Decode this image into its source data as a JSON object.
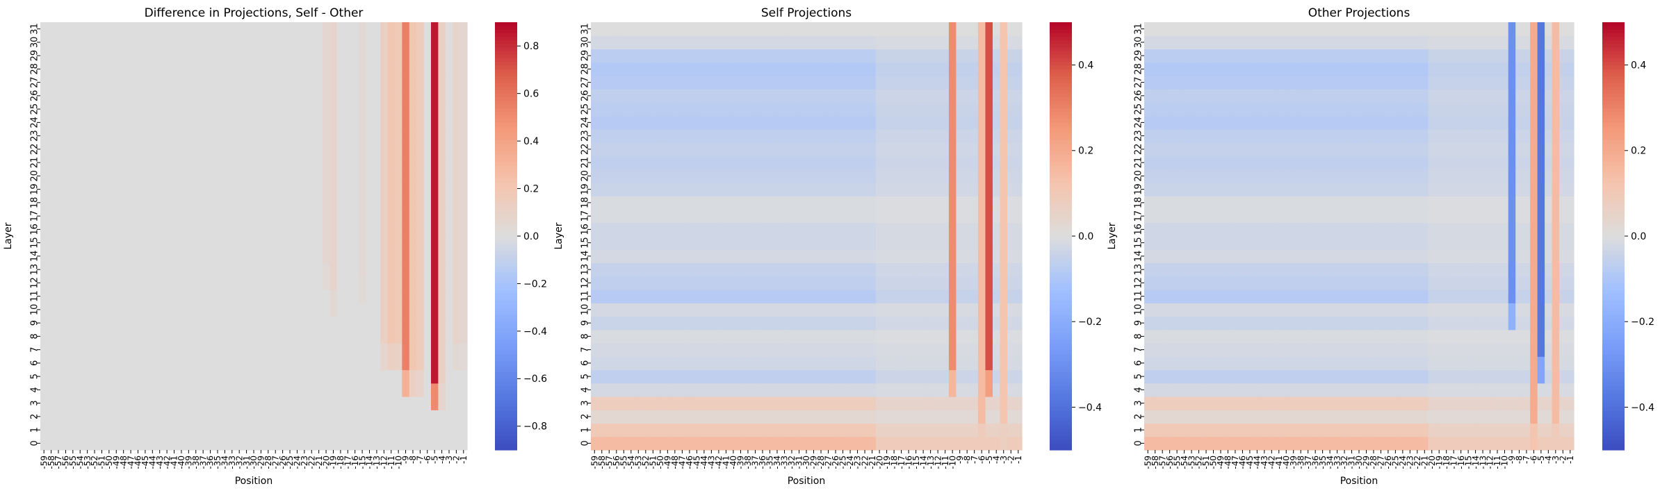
{
  "chart_data": [
    {
      "type": "heatmap",
      "title": "Difference in Projections, Self - Other",
      "xlabel": "Position",
      "ylabel": "Layer",
      "x_ticks": [
        "-59",
        "-57",
        "-55",
        "-53",
        "-51",
        "-49",
        "-47",
        "-45",
        "-43",
        "-41",
        "-39",
        "-37",
        "-35",
        "-33",
        "-31",
        "-29",
        "-27",
        "-25",
        "-23",
        "-21",
        "-19",
        "-17",
        "-15",
        "-13",
        "-11",
        "-9",
        "-7",
        "-5",
        "-3",
        "-1"
      ],
      "x_ticks_secondary": [
        "-58",
        "-56",
        "-54",
        "-52",
        "-50",
        "-48",
        "-46",
        "-44",
        "-42",
        "-40",
        "-38",
        "-36",
        "-34",
        "-32",
        "-30",
        "-28",
        "-26",
        "-24",
        "-22",
        "-20",
        "-18",
        "-16",
        "-14",
        "-12",
        "-10",
        "-8",
        "-6",
        "-4",
        "-2"
      ],
      "y_ticks": [
        "0",
        "1",
        "2",
        "3",
        "4",
        "5",
        "6",
        "7",
        "8",
        "9",
        "10",
        "11",
        "12",
        "13",
        "14",
        "15",
        "16",
        "17",
        "18",
        "19",
        "20",
        "21",
        "22",
        "23",
        "24",
        "25",
        "26",
        "27",
        "28",
        "29",
        "30",
        "31"
      ],
      "colormap": "coolwarm",
      "vmin": -0.9,
      "vmax": 0.9,
      "colorbar_ticks": [
        "-0.8",
        "-0.6",
        "-0.4",
        "-0.2",
        "0.0",
        "0.2",
        "0.4",
        "0.6",
        "0.8"
      ],
      "colorbar_values": [
        -0.8,
        -0.6,
        -0.4,
        -0.2,
        0.0,
        0.2,
        0.4,
        0.6,
        0.8
      ],
      "columns": [
        {
          "position": -20,
          "from_layer": 12,
          "values": 0.06
        },
        {
          "position": -19,
          "from_layer": 10,
          "values": 0.08
        },
        {
          "position": -15,
          "from_layer": 11,
          "values": 0.05
        },
        {
          "position": -12,
          "from_layer": 6,
          "values": 0.12
        },
        {
          "position": -11,
          "from_layer": 6,
          "values": 0.2
        },
        {
          "position": -10,
          "from_layer": 6,
          "values": 0.18
        },
        {
          "position": -9,
          "from_layer": 4,
          "values": 0.55
        },
        {
          "position": -8,
          "from_layer": 4,
          "values": 0.2
        },
        {
          "position": -7,
          "from_layer": 4,
          "values": 0.15
        },
        {
          "position": -5,
          "from_layer": 3,
          "values": 0.85
        },
        {
          "position": -4,
          "from_layer": 3,
          "values": 0.12
        },
        {
          "position": -2,
          "from_layer": 6,
          "values": 0.08
        },
        {
          "position": -1,
          "from_layer": 6,
          "values": 0.06
        }
      ]
    },
    {
      "type": "heatmap",
      "title": "Self Projections",
      "xlabel": "Position",
      "ylabel": "Layer",
      "x_ticks": [
        "-59",
        "-57",
        "-55",
        "-53",
        "-51",
        "-49",
        "-47",
        "-45",
        "-43",
        "-41",
        "-39",
        "-37",
        "-35",
        "-33",
        "-31",
        "-29",
        "-27",
        "-25",
        "-23",
        "-21",
        "-19",
        "-17",
        "-15",
        "-13",
        "-11",
        "-9",
        "-7",
        "-5",
        "-3",
        "-1"
      ],
      "x_ticks_secondary": [
        "-58",
        "-56",
        "-54",
        "-52",
        "-50",
        "-48",
        "-46",
        "-44",
        "-42",
        "-40",
        "-38",
        "-36",
        "-34",
        "-32",
        "-30",
        "-28",
        "-26",
        "-24",
        "-22",
        "-20",
        "-18",
        "-16",
        "-14",
        "-12",
        "-10",
        "-8",
        "-6",
        "-4",
        "-2"
      ],
      "y_ticks": [
        "0",
        "1",
        "2",
        "3",
        "4",
        "5",
        "6",
        "7",
        "8",
        "9",
        "10",
        "11",
        "12",
        "13",
        "14",
        "15",
        "16",
        "17",
        "18",
        "19",
        "20",
        "21",
        "22",
        "23",
        "24",
        "25",
        "26",
        "27",
        "28",
        "29",
        "30",
        "31"
      ],
      "colormap": "coolwarm",
      "vmin": -0.5,
      "vmax": 0.5,
      "colorbar_ticks": [
        "-0.4",
        "-0.2",
        "0.0",
        "0.2",
        "0.4"
      ],
      "colorbar_values": [
        -0.4,
        -0.2,
        0.0,
        0.2,
        0.4
      ],
      "layer_baseline": [
        0.15,
        0.1,
        0.03,
        0.08,
        -0.02,
        -0.06,
        -0.03,
        -0.02,
        -0.01,
        -0.04,
        -0.02,
        -0.08,
        -0.06,
        -0.05,
        -0.02,
        -0.03,
        -0.03,
        -0.01,
        -0.01,
        -0.04,
        -0.05,
        -0.06,
        -0.05,
        -0.06,
        -0.08,
        -0.07,
        -0.06,
        -0.08,
        -0.09,
        -0.07,
        -0.02,
        0.0
      ],
      "columns": [
        {
          "position": -10,
          "from_layer": 4,
          "values": 0.28
        },
        {
          "position": -5,
          "from_layer": 4,
          "values": 0.4
        },
        {
          "position": -6,
          "from_layer": 0,
          "values": 0.15
        },
        {
          "position": -3,
          "from_layer": 0,
          "values": 0.12
        }
      ]
    },
    {
      "type": "heatmap",
      "title": "Other Projections",
      "xlabel": "Position",
      "ylabel": "Layer",
      "x_ticks": [
        "-59",
        "-57",
        "-55",
        "-53",
        "-51",
        "-49",
        "-47",
        "-45",
        "-43",
        "-41",
        "-39",
        "-37",
        "-35",
        "-33",
        "-31",
        "-29",
        "-27",
        "-25",
        "-23",
        "-21",
        "-19",
        "-17",
        "-15",
        "-13",
        "-11",
        "-9",
        "-7",
        "-5",
        "-3",
        "-1"
      ],
      "x_ticks_secondary": [
        "-58",
        "-56",
        "-54",
        "-52",
        "-50",
        "-48",
        "-46",
        "-44",
        "-42",
        "-40",
        "-38",
        "-36",
        "-34",
        "-32",
        "-30",
        "-28",
        "-26",
        "-24",
        "-22",
        "-20",
        "-18",
        "-16",
        "-14",
        "-12",
        "-10",
        "-8",
        "-6",
        "-4",
        "-2"
      ],
      "y_ticks": [
        "0",
        "1",
        "2",
        "3",
        "4",
        "5",
        "6",
        "7",
        "8",
        "9",
        "10",
        "11",
        "12",
        "13",
        "14",
        "15",
        "16",
        "17",
        "18",
        "19",
        "20",
        "21",
        "22",
        "23",
        "24",
        "25",
        "26",
        "27",
        "28",
        "29",
        "30",
        "31"
      ],
      "colormap": "coolwarm",
      "vmin": -0.5,
      "vmax": 0.5,
      "colorbar_ticks": [
        "-0.4",
        "-0.2",
        "0.0",
        "0.2",
        "0.4"
      ],
      "colorbar_values": [
        -0.4,
        -0.2,
        0.0,
        0.2,
        0.4
      ],
      "layer_baseline": [
        0.15,
        0.1,
        0.03,
        0.08,
        -0.02,
        -0.06,
        -0.03,
        -0.02,
        -0.01,
        -0.04,
        -0.02,
        -0.08,
        -0.06,
        -0.05,
        -0.02,
        -0.03,
        -0.03,
        -0.01,
        -0.01,
        -0.04,
        -0.05,
        -0.06,
        -0.05,
        -0.06,
        -0.08,
        -0.07,
        -0.06,
        -0.08,
        -0.09,
        -0.07,
        -0.02,
        0.0
      ],
      "columns": [
        {
          "position": -9,
          "from_layer": 9,
          "values": -0.3
        },
        {
          "position": -5,
          "from_layer": 5,
          "values": -0.38
        },
        {
          "position": -6,
          "from_layer": 0,
          "values": 0.2
        },
        {
          "position": -3,
          "from_layer": 0,
          "values": 0.15
        }
      ]
    }
  ]
}
